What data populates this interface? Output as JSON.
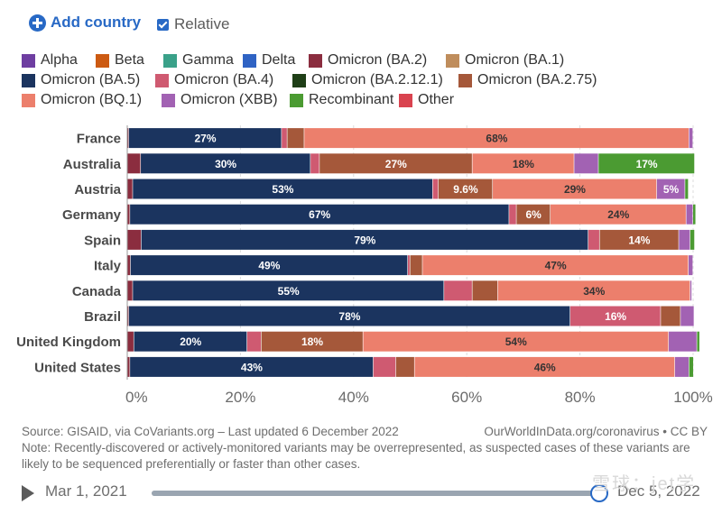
{
  "controls": {
    "add_country_label": "Add country",
    "relative_label": "Relative"
  },
  "legend": [
    {
      "label": "Alpha",
      "color": "#6e3ea1"
    },
    {
      "label": "Beta",
      "color": "#cc5a12"
    },
    {
      "label": "Gamma",
      "color": "#3aa189"
    },
    {
      "label": "Delta",
      "color": "#2f63c4"
    },
    {
      "label": "Omicron (BA.2)",
      "color": "#8b2d3f"
    },
    {
      "label": "Omicron (BA.1)",
      "color": "#bf8d5c"
    },
    {
      "label": "Omicron (BA.5)",
      "color": "#1b345f"
    },
    {
      "label": "Omicron (BA.4)",
      "color": "#cf5a71"
    },
    {
      "label": "Omicron (BA.2.12.1)",
      "color": "#1f3f17"
    },
    {
      "label": "Omicron (BA.2.75)",
      "color": "#a5583a"
    },
    {
      "label": "Omicron (BQ.1)",
      "color": "#ec7f6c"
    },
    {
      "label": "Omicron (XBB)",
      "color": "#a262b3"
    },
    {
      "label": "Recombinant",
      "color": "#4b9b32"
    },
    {
      "label": "Other",
      "color": "#d9434f"
    }
  ],
  "chart_data": {
    "type": "bar",
    "orientation": "horizontal",
    "stacked": true,
    "xlim": [
      0,
      100
    ],
    "x_ticks": [
      "0%",
      "20%",
      "40%",
      "60%",
      "80%",
      "100%"
    ],
    "grid": true,
    "legend_position": "top",
    "categories": [
      "France",
      "Australia",
      "Austria",
      "Germany",
      "Spain",
      "Italy",
      "Canada",
      "Brazil",
      "United Kingdom",
      "United States"
    ],
    "series": [
      {
        "name": "Omicron (BA.2)",
        "color": "#8b2d3f",
        "values": [
          0.3,
          2.4,
          1.0,
          0.5,
          2.5,
          0.6,
          1.0,
          0.3,
          1.2,
          0.5
        ]
      },
      {
        "name": "Omicron (BA.5)",
        "color": "#1b345f",
        "values": [
          27,
          30,
          53,
          67,
          79,
          49,
          55,
          78,
          20,
          43
        ]
      },
      {
        "name": "Omicron (BA.4)",
        "color": "#cf5a71",
        "values": [
          1.0,
          1.6,
          1.0,
          1.3,
          2.0,
          0.4,
          5.0,
          16,
          2.5,
          4.0
        ]
      },
      {
        "name": "Omicron (BA.2.75)",
        "color": "#a5583a",
        "values": [
          3.0,
          27,
          9.6,
          6,
          14,
          2.2,
          4.5,
          3.5,
          18,
          3.3
        ]
      },
      {
        "name": "Omicron (BQ.1)",
        "color": "#ec7f6c",
        "values": [
          68,
          18,
          29,
          24,
          0,
          47,
          34,
          0,
          54,
          46
        ]
      },
      {
        "name": "Omicron (XBB)",
        "color": "#a262b3",
        "values": [
          0.7,
          4.3,
          5,
          1.2,
          2.0,
          0.8,
          0.3,
          2.4,
          5.0,
          2.5
        ]
      },
      {
        "name": "Recombinant",
        "color": "#4b9b32",
        "values": [
          0,
          17,
          0.6,
          0.5,
          0.8,
          0,
          0,
          0,
          0.5,
          0.8
        ]
      }
    ],
    "data_labels": [
      {
        "category": "France",
        "series": "Omicron (BA.5)",
        "text": "27%"
      },
      {
        "category": "France",
        "series": "Omicron (BQ.1)",
        "text": "68%"
      },
      {
        "category": "Australia",
        "series": "Omicron (BA.5)",
        "text": "30%"
      },
      {
        "category": "Australia",
        "series": "Omicron (BA.2.75)",
        "text": "27%"
      },
      {
        "category": "Australia",
        "series": "Omicron (BQ.1)",
        "text": "18%"
      },
      {
        "category": "Australia",
        "series": "Recombinant",
        "text": "17%"
      },
      {
        "category": "Austria",
        "series": "Omicron (BA.5)",
        "text": "53%"
      },
      {
        "category": "Austria",
        "series": "Omicron (BA.2.75)",
        "text": "9.6%"
      },
      {
        "category": "Austria",
        "series": "Omicron (BQ.1)",
        "text": "29%"
      },
      {
        "category": "Austria",
        "series": "Omicron (XBB)",
        "text": "5%"
      },
      {
        "category": "Germany",
        "series": "Omicron (BA.5)",
        "text": "67%"
      },
      {
        "category": "Germany",
        "series": "Omicron (BA.2.75)",
        "text": "6%"
      },
      {
        "category": "Germany",
        "series": "Omicron (BQ.1)",
        "text": "24%"
      },
      {
        "category": "Spain",
        "series": "Omicron (BA.5)",
        "text": "79%"
      },
      {
        "category": "Spain",
        "series": "Omicron (BA.2.75)",
        "text": "14%"
      },
      {
        "category": "Italy",
        "series": "Omicron (BA.5)",
        "text": "49%"
      },
      {
        "category": "Italy",
        "series": "Omicron (BQ.1)",
        "text": "47%"
      },
      {
        "category": "Canada",
        "series": "Omicron (BA.5)",
        "text": "55%"
      },
      {
        "category": "Canada",
        "series": "Omicron (BQ.1)",
        "text": "34%"
      },
      {
        "category": "Brazil",
        "series": "Omicron (BA.5)",
        "text": "78%"
      },
      {
        "category": "Brazil",
        "series": "Omicron (BA.4)",
        "text": "16%"
      },
      {
        "category": "United Kingdom",
        "series": "Omicron (BA.5)",
        "text": "20%"
      },
      {
        "category": "United Kingdom",
        "series": "Omicron (BA.2.75)",
        "text": "18%"
      },
      {
        "category": "United Kingdom",
        "series": "Omicron (BQ.1)",
        "text": "54%"
      },
      {
        "category": "United States",
        "series": "Omicron (BA.5)",
        "text": "43%"
      },
      {
        "category": "United States",
        "series": "Omicron (BQ.1)",
        "text": "46%"
      }
    ]
  },
  "footer": {
    "source": "Source: GISAID, via CoVariants.org – Last updated 6 December 2022",
    "credit": "OurWorldInData.org/coronavirus • CC BY",
    "note": "Note: Recently-discovered or actively-monitored variants may be overrepresented, as suspected cases of these variants are likely to be sequenced preferentially or faster than other cases."
  },
  "timeline": {
    "start_date": "Mar 1, 2021",
    "end_date": "Dec 5, 2022",
    "position": 1.0
  },
  "watermark": "雪球：jet学"
}
